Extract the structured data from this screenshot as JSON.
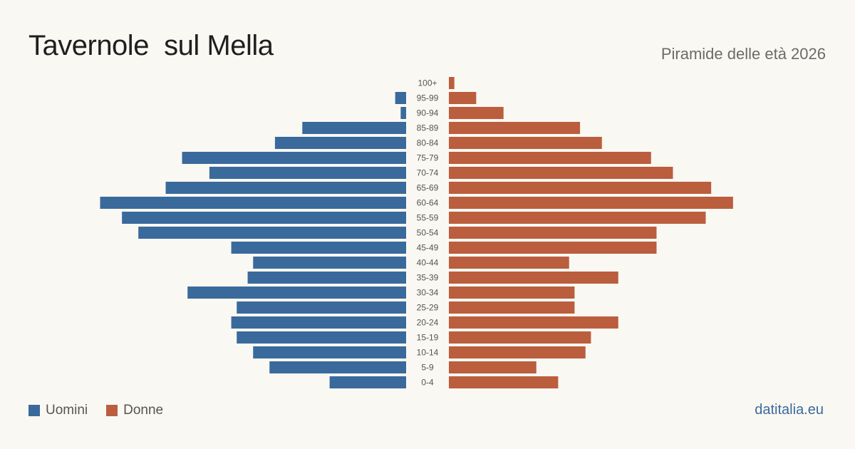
{
  "header": {
    "title": "Tavernole  sul Mella",
    "subtitle": "Piramide delle età 2026"
  },
  "legend": {
    "men_label": "Uomini",
    "women_label": "Donne"
  },
  "brand": "datitalia.eu",
  "colors": {
    "men": "#3a6a9c",
    "women": "#bb5e3e",
    "background": "#faf8f3"
  },
  "chart_data": {
    "type": "bar",
    "orientation": "horizontal-pyramid",
    "title": "Tavernole  sul Mella",
    "subtitle": "Piramide delle età 2026",
    "categories": [
      "100+",
      "95-99",
      "90-94",
      "85-89",
      "80-84",
      "75-79",
      "70-74",
      "65-69",
      "60-64",
      "55-59",
      "50-54",
      "45-49",
      "40-44",
      "35-39",
      "30-34",
      "25-29",
      "20-24",
      "15-19",
      "10-14",
      "5-9",
      "0-4"
    ],
    "series": [
      {
        "name": "Uomini",
        "values": [
          0,
          2,
          1,
          19,
          24,
          41,
          36,
          44,
          56,
          52,
          49,
          32,
          28,
          29,
          40,
          31,
          32,
          31,
          28,
          25,
          14
        ]
      },
      {
        "name": "Donne",
        "values": [
          1,
          5,
          10,
          24,
          28,
          37,
          41,
          48,
          52,
          47,
          38,
          38,
          22,
          31,
          23,
          23,
          31,
          26,
          25,
          16,
          20
        ]
      }
    ],
    "grid": false,
    "legend_position": "bottom-left"
  }
}
